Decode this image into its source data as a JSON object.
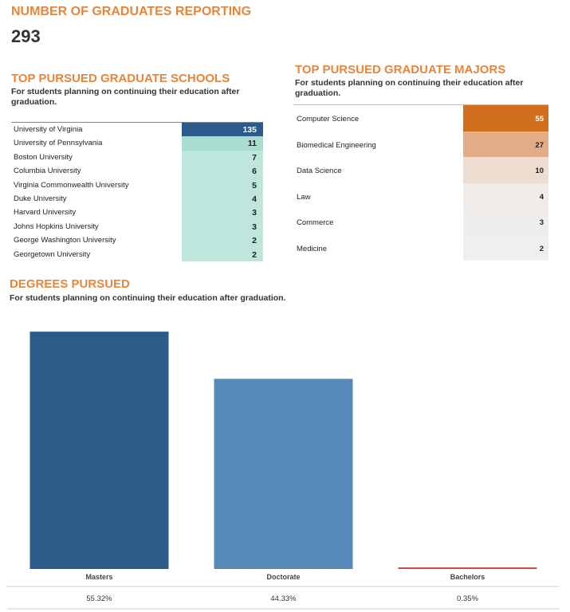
{
  "graduates": {
    "title": "NUMBER OF GRADUATES REPORTING",
    "count": "293"
  },
  "schools": {
    "title": "TOP PURSUED GRADUATE SCHOOLS",
    "subtitle": "For students planning on continuing their education after graduation.",
    "rows": [
      {
        "name": "University of Virginia",
        "value": "135"
      },
      {
        "name": "University of Pennsylvania",
        "value": "11"
      },
      {
        "name": "Boston University",
        "value": "7"
      },
      {
        "name": "Columbia University",
        "value": "6"
      },
      {
        "name": "Virginia Commonwealth University",
        "value": "5"
      },
      {
        "name": "Duke University",
        "value": "4"
      },
      {
        "name": "Harvard University",
        "value": "3"
      },
      {
        "name": "Johns Hopkins University",
        "value": "3"
      },
      {
        "name": "George Washington University",
        "value": "2"
      },
      {
        "name": "Georgetown University",
        "value": "2"
      }
    ],
    "colors": {
      "top": "#2c5b8a",
      "rest": "#bfe6dc",
      "second": "#a9ddd0"
    }
  },
  "majors": {
    "title": "TOP PURSUED GRADUATE MAJORS",
    "subtitle": "For students planning on continuing their education after graduation.",
    "rows": [
      {
        "name": "Computer Science",
        "value": "55",
        "color": "#d26f1e"
      },
      {
        "name": "Biomedical Engineering",
        "value": "27",
        "color": "#e2ad86"
      },
      {
        "name": "Data Science",
        "value": "10",
        "color": "#eddcd0"
      },
      {
        "name": "Law",
        "value": "4",
        "color": "#f0ece9"
      },
      {
        "name": "Commerce",
        "value": "3",
        "color": "#f0eeec"
      },
      {
        "name": "Medicine",
        "value": "2",
        "color": "#f0efee"
      }
    ]
  },
  "degrees": {
    "title": "DEGREES PURSUED",
    "subtitle": "For students planning on continuing their education after graduation."
  },
  "chart_data": {
    "type": "bar",
    "title": "DEGREES PURSUED",
    "subtitle": "For students planning on continuing their education after graduation.",
    "categories": [
      "Masters",
      "Doctorate",
      "Bachelors"
    ],
    "values": [
      55.32,
      44.33,
      0.35
    ],
    "labels": [
      "55.32%",
      "44.33%",
      "0.35%"
    ],
    "colors": [
      "#2b5b88",
      "#5689b8",
      "#c0533a"
    ],
    "ylim": [
      0,
      60
    ],
    "grid": false
  }
}
